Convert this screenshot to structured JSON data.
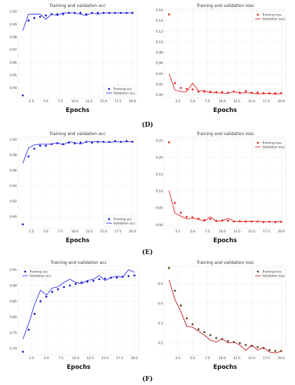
{
  "panel_labels": [
    "(D)",
    "(E)",
    "(F)"
  ],
  "chart_data": [
    {
      "type": "line",
      "panel": "D",
      "title": "Training and validation acc",
      "xlabel": "Epochs",
      "ylabel": "",
      "xlim": [
        0.2,
        20.8
      ],
      "ylim": [
        0.932,
        1.002
      ],
      "x_ticks": [
        2.5,
        5.0,
        7.5,
        10.0,
        12.5,
        15.0,
        17.5,
        20.0
      ],
      "y_ticks": [
        0.94,
        0.95,
        0.96,
        0.97,
        0.98,
        0.99,
        1.0
      ],
      "x_tick_labels": [
        "2.5",
        "5.0",
        "7.5",
        "10.0",
        "12.5",
        "15.0",
        "17.5",
        "20.0"
      ],
      "y_tick_labels": [
        "0.94",
        "0.95",
        "0.96",
        "0.97",
        "0.98",
        "0.99",
        "1.00"
      ],
      "grid": true,
      "legend": "bottom-right",
      "series": [
        {
          "name": "Training acc",
          "style": "points",
          "color": "#1515c8",
          "x": [
            1,
            2,
            3,
            4,
            5,
            6,
            7,
            8,
            9,
            10,
            11,
            12,
            13,
            14,
            15,
            16,
            17,
            18,
            19,
            20
          ],
          "values": [
            0.934,
            0.993,
            0.995,
            0.996,
            0.997,
            0.998,
            0.998,
            0.998,
            0.999,
            0.999,
            0.999,
            0.998,
            0.999,
            0.999,
            0.999,
            0.999,
            0.999,
            0.999,
            0.999,
            0.999
          ]
        },
        {
          "name": "Validation acc",
          "style": "line",
          "color": "#2c2cf0",
          "x": [
            1,
            2,
            3,
            4,
            5,
            6,
            7,
            8,
            9,
            10,
            11,
            12,
            13,
            14,
            15,
            16,
            17,
            18,
            19,
            20
          ],
          "values": [
            0.985,
            0.998,
            0.998,
            0.998,
            0.994,
            0.998,
            0.997,
            0.999,
            0.999,
            0.999,
            0.998,
            0.997,
            0.999,
            0.998,
            0.999,
            0.999,
            0.999,
            0.999,
            0.999,
            0.999
          ]
        }
      ]
    },
    {
      "type": "line",
      "panel": "D",
      "title": "Training and validation loss",
      "xlabel": "Epochs",
      "ylabel": "",
      "xlim": [
        0.2,
        20.8
      ],
      "ylim": [
        -0.006,
        0.162
      ],
      "x_ticks": [
        2.5,
        5.0,
        7.5,
        10.0,
        12.5,
        15.0,
        17.5,
        20.0
      ],
      "y_ticks": [
        0.0,
        0.02,
        0.04,
        0.06,
        0.08,
        0.1,
        0.12,
        0.14,
        0.16
      ],
      "x_tick_labels": [
        "2.5",
        "5.0",
        "7.5",
        "10.0",
        "12.5",
        "15.0",
        "17.5",
        "20.0"
      ],
      "y_tick_labels": [
        "0.00",
        "0.02",
        "0.04",
        "0.06",
        "0.08",
        "0.10",
        "0.12",
        "0.14",
        "0.16"
      ],
      "grid": true,
      "legend": "top-right",
      "series": [
        {
          "name": "Training loss",
          "style": "points",
          "color": "#e41a1c",
          "x": [
            1,
            2,
            3,
            4,
            5,
            6,
            7,
            8,
            9,
            10,
            11,
            12,
            13,
            14,
            15,
            16,
            17,
            18,
            19,
            20
          ],
          "values": [
            0.152,
            0.022,
            0.013,
            0.011,
            0.01,
            0.006,
            0.006,
            0.006,
            0.005,
            0.005,
            0.004,
            0.006,
            0.004,
            0.007,
            0.004,
            0.004,
            0.003,
            0.003,
            0.003,
            0.003
          ]
        },
        {
          "name": "Validation loss",
          "style": "line",
          "color": "#e41a1c",
          "x": [
            1,
            2,
            3,
            4,
            5,
            6,
            7,
            8,
            9,
            10,
            11,
            12,
            13,
            14,
            15,
            16,
            17,
            18,
            19,
            20
          ],
          "values": [
            0.04,
            0.009,
            0.006,
            0.006,
            0.022,
            0.007,
            0.008,
            0.004,
            0.004,
            0.003,
            0.003,
            0.006,
            0.003,
            0.004,
            0.003,
            0.002,
            0.002,
            0.003,
            0.001,
            0.003
          ]
        }
      ]
    },
    {
      "type": "line",
      "panel": "E",
      "title": "Training and validation acc",
      "xlabel": "Epochs",
      "ylabel": "",
      "xlim": [
        0.2,
        20.8
      ],
      "ylim": [
        0.885,
        1.003
      ],
      "x_ticks": [
        2.5,
        5.0,
        7.5,
        10.0,
        12.5,
        15.0,
        17.5,
        20.0
      ],
      "y_ticks": [
        0.9,
        0.92,
        0.94,
        0.96,
        0.98,
        1.0
      ],
      "x_tick_labels": [
        "2.5",
        "5.0",
        "7.5",
        "10.0",
        "12.5",
        "15.0",
        "17.5",
        "20.0"
      ],
      "y_tick_labels": [
        "0.90",
        "0.92",
        "0.94",
        "0.96",
        "0.98",
        "1.00"
      ],
      "grid": true,
      "legend": "bottom-right",
      "series": [
        {
          "name": "Training acc",
          "style": "points",
          "color": "#1515c8",
          "x": [
            1,
            2,
            3,
            4,
            5,
            6,
            7,
            8,
            9,
            10,
            11,
            12,
            13,
            14,
            15,
            16,
            17,
            18,
            19,
            20
          ],
          "values": [
            0.89,
            0.978,
            0.988,
            0.992,
            0.992,
            0.994,
            0.995,
            0.994,
            0.996,
            0.995,
            0.996,
            0.997,
            0.996,
            0.997,
            0.997,
            0.997,
            0.998,
            0.997,
            0.998,
            0.997
          ]
        },
        {
          "name": "Validation acc",
          "style": "line",
          "color": "#2c2cf0",
          "x": [
            1,
            2,
            3,
            4,
            5,
            6,
            7,
            8,
            9,
            10,
            11,
            12,
            13,
            14,
            15,
            16,
            17,
            18,
            19,
            20
          ],
          "values": [
            0.969,
            0.989,
            0.993,
            0.994,
            0.994,
            0.994,
            0.996,
            0.993,
            0.997,
            0.996,
            0.994,
            0.997,
            0.997,
            0.997,
            0.997,
            0.996,
            0.997,
            0.997,
            0.997,
            0.997
          ]
        }
      ]
    },
    {
      "type": "line",
      "panel": "E",
      "title": "Training and validation loss",
      "xlabel": "Epochs",
      "ylabel": "",
      "xlim": [
        0.2,
        20.8
      ],
      "ylim": [
        -0.01,
        0.26
      ],
      "x_ticks": [
        2.5,
        5.0,
        7.5,
        10.0,
        12.5,
        15.0,
        17.5,
        20.0
      ],
      "y_ticks": [
        0.0,
        0.05,
        0.1,
        0.15,
        0.2,
        0.25
      ],
      "x_tick_labels": [
        "2.5",
        "5.0",
        "7.5",
        "10.0",
        "12.5",
        "15.0",
        "17.5",
        "20.0"
      ],
      "y_tick_labels": [
        "0.00",
        "0.05",
        "0.10",
        "0.15",
        "0.20",
        "0.25"
      ],
      "grid": true,
      "legend": "top-right",
      "series": [
        {
          "name": "Training loss",
          "style": "points",
          "color": "#e41a1c",
          "x": [
            1,
            2,
            3,
            4,
            5,
            6,
            7,
            8,
            9,
            10,
            11,
            12,
            13,
            14,
            15,
            16,
            17,
            18,
            19,
            20
          ],
          "values": [
            0.245,
            0.065,
            0.036,
            0.024,
            0.022,
            0.018,
            0.014,
            0.017,
            0.012,
            0.013,
            0.012,
            0.01,
            0.011,
            0.01,
            0.01,
            0.01,
            0.008,
            0.009,
            0.008,
            0.009
          ]
        },
        {
          "name": "Validation loss",
          "style": "line",
          "color": "#e41a1c",
          "x": [
            1,
            2,
            3,
            4,
            5,
            6,
            7,
            8,
            9,
            10,
            11,
            12,
            13,
            14,
            15,
            16,
            17,
            18,
            19,
            20
          ],
          "values": [
            0.102,
            0.035,
            0.026,
            0.018,
            0.02,
            0.016,
            0.011,
            0.024,
            0.01,
            0.012,
            0.019,
            0.011,
            0.009,
            0.01,
            0.01,
            0.011,
            0.009,
            0.009,
            0.009,
            0.01
          ]
        }
      ]
    },
    {
      "type": "line",
      "panel": "F",
      "title": "Training and validation acc",
      "xlabel": "Epochs",
      "ylabel": "",
      "xlim": [
        0.2,
        20.8
      ],
      "ylim": [
        0.68,
        0.962
      ],
      "x_ticks": [
        2.5,
        5.0,
        7.5,
        10.0,
        12.5,
        15.0,
        17.5,
        20.0
      ],
      "y_ticks": [
        0.7,
        0.75,
        0.8,
        0.85,
        0.9,
        0.95
      ],
      "x_tick_labels": [
        "2.5",
        "5.0",
        "7.5",
        "10.0",
        "12.5",
        "15.0",
        "17.5",
        "20.0"
      ],
      "y_tick_labels": [
        "0.70",
        "0.75",
        "0.80",
        "0.85",
        "0.90",
        "0.95"
      ],
      "grid": true,
      "legend": "top-left",
      "series": [
        {
          "name": "Training acc",
          "style": "points",
          "color": "#1515c8",
          "x": [
            1,
            2,
            3,
            4,
            5,
            6,
            7,
            8,
            9,
            10,
            11,
            12,
            13,
            14,
            15,
            16,
            17,
            18,
            19,
            20
          ],
          "values": [
            0.69,
            0.76,
            0.81,
            0.85,
            0.865,
            0.88,
            0.888,
            0.895,
            0.9,
            0.905,
            0.91,
            0.912,
            0.915,
            0.92,
            0.922,
            0.925,
            0.925,
            0.928,
            0.93,
            0.932
          ]
        },
        {
          "name": "Validation acc",
          "style": "line",
          "color": "#2c2cf0",
          "x": [
            1,
            2,
            3,
            4,
            5,
            6,
            7,
            8,
            9,
            10,
            11,
            12,
            13,
            14,
            15,
            16,
            17,
            18,
            19,
            20
          ],
          "values": [
            0.73,
            0.78,
            0.84,
            0.885,
            0.87,
            0.892,
            0.896,
            0.91,
            0.92,
            0.91,
            0.906,
            0.916,
            0.92,
            0.932,
            0.916,
            0.925,
            0.93,
            0.926,
            0.95,
            0.942
          ]
        }
      ]
    },
    {
      "type": "line",
      "panel": "F",
      "title": "Training and validation loss",
      "xlabel": "Epochs",
      "ylabel": "",
      "xlim": [
        0.2,
        20.8
      ],
      "ylim": [
        0.14,
        0.59
      ],
      "x_ticks": [
        2.5,
        5.0,
        7.5,
        10.0,
        12.5,
        15.0,
        17.5,
        20.0
      ],
      "y_ticks": [
        0.2,
        0.3,
        0.4,
        0.5
      ],
      "x_tick_labels": [
        "2.5",
        "5.0",
        "7.5",
        "10.0",
        "12.5",
        "15.0",
        "17.5",
        "20.0"
      ],
      "y_tick_labels": [
        "0.2",
        "0.3",
        "0.4",
        "0.5"
      ],
      "grid": true,
      "legend": "top-right",
      "series": [
        {
          "name": "Training loss",
          "style": "points",
          "color": "#5a3a10",
          "x": [
            1,
            2,
            3,
            4,
            5,
            6,
            7,
            8,
            9,
            10,
            11,
            12,
            13,
            14,
            15,
            16,
            17,
            18,
            19,
            20
          ],
          "values": [
            0.58,
            0.465,
            0.39,
            0.325,
            0.295,
            0.27,
            0.255,
            0.24,
            0.225,
            0.22,
            0.21,
            0.205,
            0.2,
            0.19,
            0.185,
            0.18,
            0.175,
            0.165,
            0.16,
            0.16
          ]
        },
        {
          "name": "Validation loss",
          "style": "line",
          "color": "#b8171c",
          "x": [
            1,
            2,
            3,
            4,
            5,
            6,
            7,
            8,
            9,
            10,
            11,
            12,
            13,
            14,
            15,
            16,
            17,
            18,
            19,
            20
          ],
          "values": [
            0.52,
            0.42,
            0.36,
            0.285,
            0.28,
            0.26,
            0.24,
            0.215,
            0.205,
            0.222,
            0.2,
            0.205,
            0.19,
            0.163,
            0.19,
            0.165,
            0.178,
            0.155,
            0.15,
            0.158
          ]
        }
      ]
    }
  ]
}
